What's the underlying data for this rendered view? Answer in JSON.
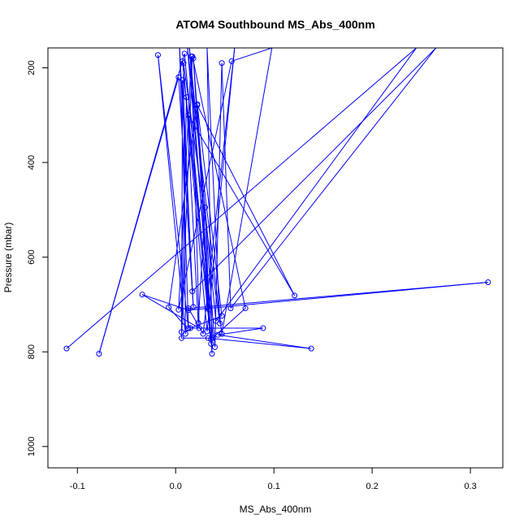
{
  "chart_data": {
    "type": "line",
    "title": "ATOM4 Southbound MS_Abs_400nm",
    "xlabel": "MS_Abs_400nm",
    "ylabel": "Pressure (mbar)",
    "xlim": [
      -0.13,
      0.333
    ],
    "ylim": [
      1045,
      158
    ],
    "y_reversed": true,
    "grid": false,
    "legend": "none",
    "line_color": "#0000ff",
    "marker": "open-circle",
    "x_ticks": [
      -0.1,
      0.0,
      0.1,
      0.2,
      0.3
    ],
    "x_tick_labels": [
      "-0.1",
      "0.0",
      "0.1",
      "0.2",
      "0.3"
    ],
    "y_ticks": [
      200,
      400,
      600,
      800,
      1000
    ],
    "y_tick_labels": [
      "200",
      "400",
      "600",
      "800",
      "1000"
    ],
    "series": [
      {
        "values": [
          {
            "x": -0.111,
            "y": 793
          },
          {
            "x": 0.245,
            "y": 158
          },
          {
            "x": 0.041,
            "y": 735
          },
          {
            "x": 0.014,
            "y": 158
          },
          {
            "x": 0.036,
            "y": 773
          },
          {
            "x": 0.009,
            "y": 170
          },
          {
            "x": -0.078,
            "y": 804
          },
          {
            "x": 0.003,
            "y": 220
          },
          {
            "x": 0.018,
            "y": 705
          },
          {
            "x": 0.004,
            "y": 158
          },
          {
            "x": 0.013,
            "y": 750
          },
          {
            "x": -0.018,
            "y": 173
          },
          {
            "x": 0.01,
            "y": 762
          },
          {
            "x": 0.008,
            "y": 190
          },
          {
            "x": 0.045,
            "y": 740
          },
          {
            "x": 0.032,
            "y": 158
          },
          {
            "x": 0.037,
            "y": 804
          },
          {
            "x": 0.018,
            "y": 180
          },
          {
            "x": 0.04,
            "y": 790
          },
          {
            "x": 0.047,
            "y": 190
          },
          {
            "x": 0.056,
            "y": 708
          },
          {
            "x": 0.265,
            "y": 158
          },
          {
            "x": 0.017,
            "y": 672
          },
          {
            "x": 0.007,
            "y": 226
          },
          {
            "x": 0.006,
            "y": 758
          },
          {
            "x": 0.011,
            "y": 262
          },
          {
            "x": 0.023,
            "y": 739
          },
          {
            "x": 0.03,
            "y": 495
          },
          {
            "x": 0.034,
            "y": 711
          },
          {
            "x": 0.013,
            "y": 300
          },
          {
            "x": 0.121,
            "y": 681
          },
          {
            "x": 0.022,
            "y": 279
          },
          {
            "x": 0.036,
            "y": 783
          },
          {
            "x": 0.007,
            "y": 186
          },
          {
            "x": 0.032,
            "y": 757
          },
          {
            "x": 0.06,
            "y": 158
          },
          {
            "x": 0.028,
            "y": 762
          },
          {
            "x": 0.013,
            "y": 708
          },
          {
            "x": 0.318,
            "y": 653
          },
          {
            "x": 0.013,
            "y": 712
          },
          {
            "x": -0.034,
            "y": 679
          },
          {
            "x": 0.024,
            "y": 750
          },
          {
            "x": 0.016,
            "y": 176
          },
          {
            "x": 0.003,
            "y": 711
          },
          {
            "x": 0.057,
            "y": 186
          },
          {
            "x": 0.098,
            "y": 158
          },
          {
            "x": 0.047,
            "y": 762
          },
          {
            "x": 0.012,
            "y": 158
          },
          {
            "x": 0.038,
            "y": 770
          },
          {
            "x": 0.071,
            "y": 708
          },
          {
            "x": 0.017,
            "y": 176
          },
          {
            "x": 0.006,
            "y": 771
          },
          {
            "x": 0.033,
            "y": 771
          },
          {
            "x": 0.138,
            "y": 793
          },
          {
            "x": 0.043,
            "y": 764
          },
          {
            "x": 0.089,
            "y": 750
          },
          {
            "x": 0.015,
            "y": 750
          },
          {
            "x": 0.047,
            "y": 724
          },
          {
            "x": 0.022,
            "y": 277
          },
          {
            "x": -0.007,
            "y": 706
          },
          {
            "x": 0.012,
            "y": 751
          }
        ]
      }
    ]
  }
}
